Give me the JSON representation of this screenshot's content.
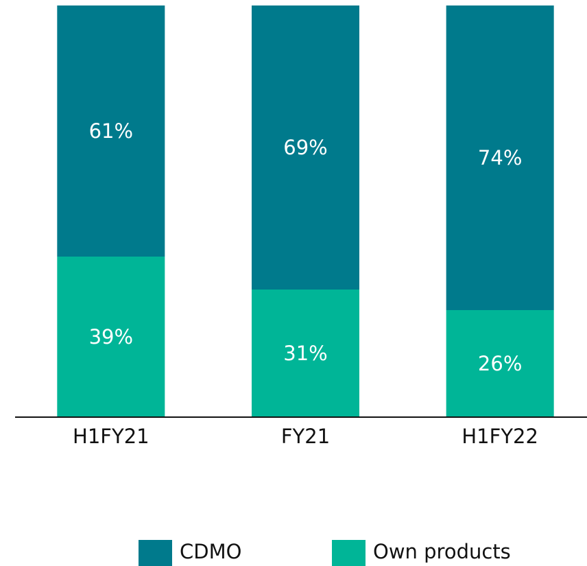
{
  "chart_data": {
    "type": "stacked_bar",
    "categories": [
      "H1FY21",
      "FY21",
      "H1FY22"
    ],
    "series": [
      {
        "name": "CDMO",
        "color": "#007a8c",
        "values": [
          61,
          69,
          74
        ],
        "value_labels": [
          "61%",
          "69%",
          "74%"
        ]
      },
      {
        "name": "Own products",
        "color": "#00b597",
        "values": [
          39,
          31,
          26
        ],
        "value_labels": [
          "39%",
          "31%",
          "26%"
        ]
      }
    ],
    "ylim": [
      0,
      100
    ]
  }
}
